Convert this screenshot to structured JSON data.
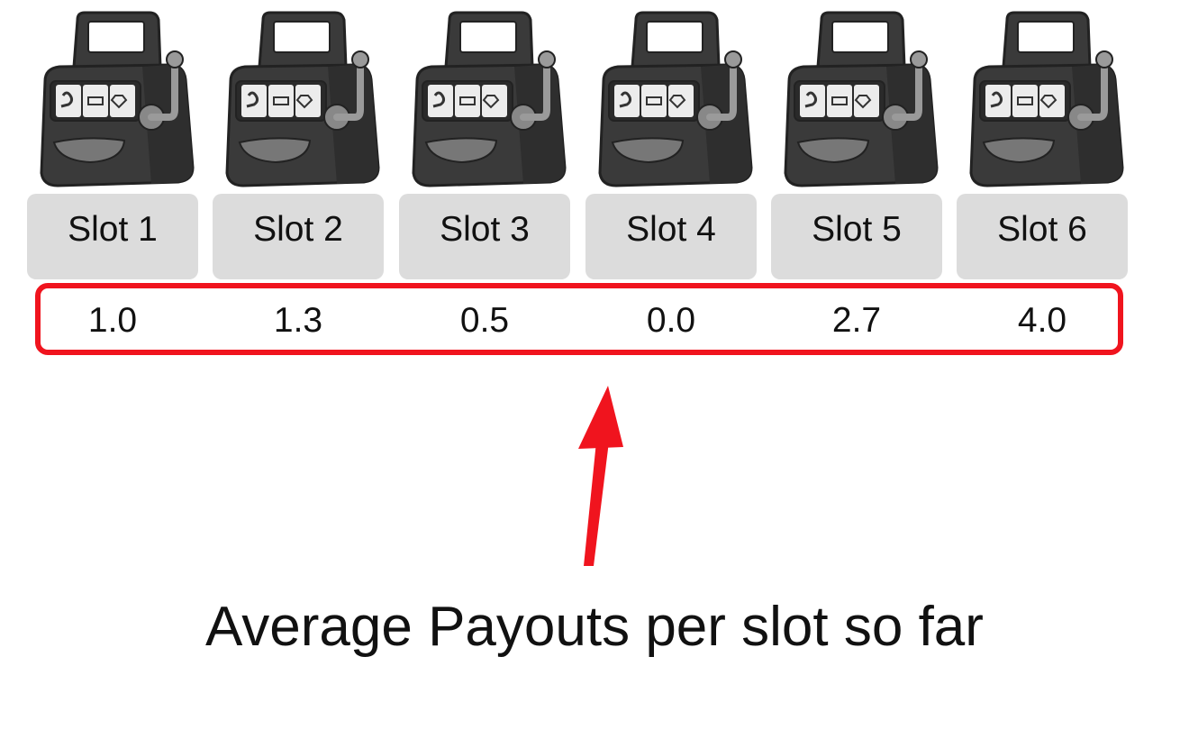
{
  "slots": [
    {
      "label": "Slot 1",
      "payout": "1.0"
    },
    {
      "label": "Slot 2",
      "payout": "1.3"
    },
    {
      "label": "Slot 3",
      "payout": "0.5"
    },
    {
      "label": "Slot 4",
      "payout": "0.0"
    },
    {
      "label": "Slot 5",
      "payout": "2.7"
    },
    {
      "label": "Slot 6",
      "payout": "4.0"
    }
  ],
  "caption": "Average Payouts per slot so far",
  "icons": {
    "machine": "slot-machine-icon",
    "arrow": "red-arrow-up"
  },
  "colors": {
    "highlight": "#f0141e",
    "button_bg": "#dcdcdc",
    "machine_body": "#3a3a3a"
  }
}
